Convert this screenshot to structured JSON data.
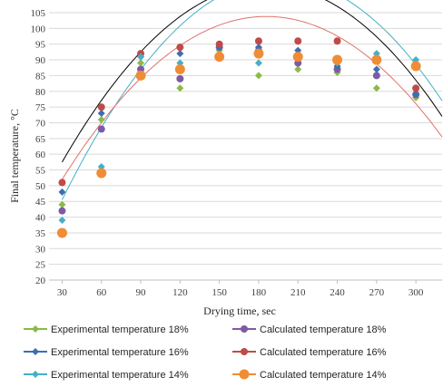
{
  "chart_data": {
    "type": "scatter",
    "title": "",
    "xlabel": "Drying time, sec",
    "ylabel": "Final temperature, °C",
    "xlim": [
      20,
      320
    ],
    "ylim": [
      20,
      105
    ],
    "x_ticks": [
      30,
      60,
      90,
      120,
      150,
      180,
      210,
      240,
      270,
      300
    ],
    "y_ticks": [
      20,
      25,
      30,
      35,
      40,
      45,
      50,
      55,
      60,
      65,
      70,
      75,
      80,
      85,
      90,
      95,
      100,
      105
    ],
    "x_tick_labels": [
      "30",
      "60",
      "90",
      "120",
      "150",
      "180",
      "210",
      "240",
      "270",
      "300"
    ],
    "y_tick_labels": [
      "20",
      "25",
      "30",
      "35",
      "40",
      "45",
      "50",
      "55",
      "60",
      "65",
      "70",
      "75",
      "80",
      "85",
      "90",
      "95",
      "100",
      "105"
    ],
    "grid": "horizontal",
    "legend_position": "bottom",
    "x": [
      30,
      60,
      90,
      120,
      150,
      180,
      210,
      240,
      270,
      300
    ],
    "series": [
      {
        "name": "Experimental temperature 18%",
        "marker": "diamond",
        "color": "#8DB84A",
        "values": [
          44,
          71,
          89,
          81,
          93,
          85,
          87,
          86,
          81,
          78
        ]
      },
      {
        "name": "Calculated temperature 18%",
        "marker": "circle",
        "color": "#7D5AA6",
        "values": [
          42,
          68,
          87,
          84,
          94,
          93,
          89,
          87,
          85,
          79
        ]
      },
      {
        "name": "Experimental temperature 16%",
        "marker": "diamond",
        "color": "#3D6FB0",
        "values": [
          48,
          73,
          91,
          92,
          94,
          94,
          93,
          88,
          87,
          79
        ]
      },
      {
        "name": "Calculated temperature 16%",
        "marker": "circle",
        "color": "#BE4B48",
        "values": [
          51,
          75,
          92,
          94,
          95,
          96,
          96,
          96,
          90,
          81
        ]
      },
      {
        "name": "Experimental temperature 14%",
        "marker": "diamond",
        "color": "#45AFC6",
        "values": [
          39,
          56,
          91,
          89,
          91,
          89,
          91,
          89,
          92,
          90
        ]
      },
      {
        "name": "Calculated temperature 14%",
        "marker": "circle-large",
        "color": "#F08C35",
        "values": [
          35,
          54,
          85,
          87,
          91,
          92,
          91,
          90,
          90,
          88
        ]
      }
    ],
    "trendlines": [
      {
        "type": "polynomial",
        "order": 2,
        "color": "#000000",
        "x": [
          30,
          310,
          320
        ],
        "values": [
          57.5,
          78,
          72
        ]
      },
      {
        "type": "polynomial",
        "order": 2,
        "color": "#45AFC6",
        "x": [
          30,
          310,
          320
        ],
        "values": [
          45.5,
          83,
          77
        ]
      },
      {
        "type": "polynomial",
        "order": 2,
        "color": "#E0706B",
        "x": [
          30,
          310,
          320
        ],
        "values": [
          52,
          71,
          65.5
        ]
      }
    ]
  }
}
